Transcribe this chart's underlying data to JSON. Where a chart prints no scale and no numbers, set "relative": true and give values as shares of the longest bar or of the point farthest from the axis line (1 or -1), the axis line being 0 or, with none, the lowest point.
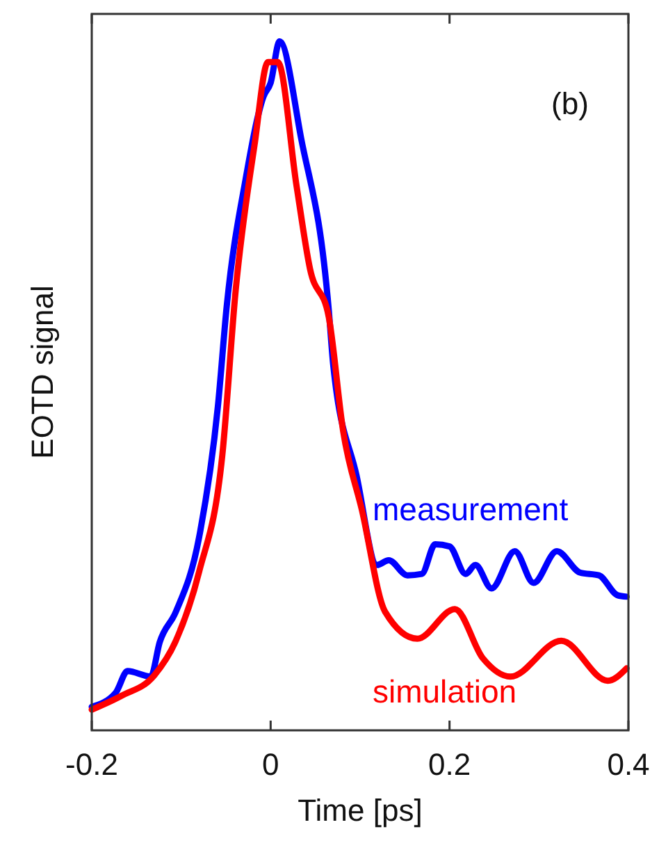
{
  "chart_data": {
    "type": "line",
    "relative": true,
    "xlabel": "Time [ps]",
    "ylabel": "EOTD signal",
    "annotations": [
      "(b)"
    ],
    "xlim": [
      -0.2,
      0.4
    ],
    "xticks": [
      -0.2,
      0,
      0.2,
      0.4
    ],
    "tick_labels": "x",
    "legend": false,
    "grid": false,
    "marker": "none",
    "line_style": "solid",
    "series": [
      {
        "name": "measurement",
        "color": "#0000ff",
        "x": [
          -0.2,
          -0.173,
          -0.16,
          -0.134,
          -0.124,
          -0.106,
          -0.08,
          -0.059,
          -0.049,
          -0.028,
          -0.008,
          0.0,
          0.01,
          0.034,
          0.065,
          0.07,
          0.096,
          0.119,
          0.132,
          0.153,
          0.169,
          0.184,
          0.2,
          0.218,
          0.229,
          0.247,
          0.273,
          0.294,
          0.32,
          0.346,
          0.367,
          0.388,
          0.398
        ],
        "values": [
          0.034,
          0.055,
          0.086,
          0.078,
          0.128,
          0.172,
          0.28,
          0.47,
          0.617,
          0.8,
          0.92,
          0.94,
          1,
          0.86,
          0.61,
          0.53,
          0.37,
          0.24,
          0.247,
          0.225,
          0.227,
          0.27,
          0.267,
          0.227,
          0.24,
          0.206,
          0.26,
          0.214,
          0.26,
          0.229,
          0.225,
          0.196,
          0.194
        ]
      },
      {
        "name": "simulation",
        "color": "#ff0000",
        "x": [
          -0.2,
          -0.167,
          -0.13,
          -0.106,
          -0.08,
          -0.054,
          -0.039,
          -0.018,
          -0.003,
          0.008,
          0.029,
          0.044,
          0.065,
          0.081,
          0.102,
          0.128,
          0.164,
          0.206,
          0.237,
          0.268,
          0.325,
          0.377,
          0.398
        ],
        "values": [
          0.03,
          0.05,
          0.08,
          0.13,
          0.23,
          0.4,
          0.64,
          0.85,
          0.97,
          0.97,
          0.79,
          0.67,
          0.6,
          0.435,
          0.32,
          0.172,
          0.133,
          0.176,
          0.105,
          0.078,
          0.13,
          0.072,
          0.09
        ]
      }
    ]
  }
}
